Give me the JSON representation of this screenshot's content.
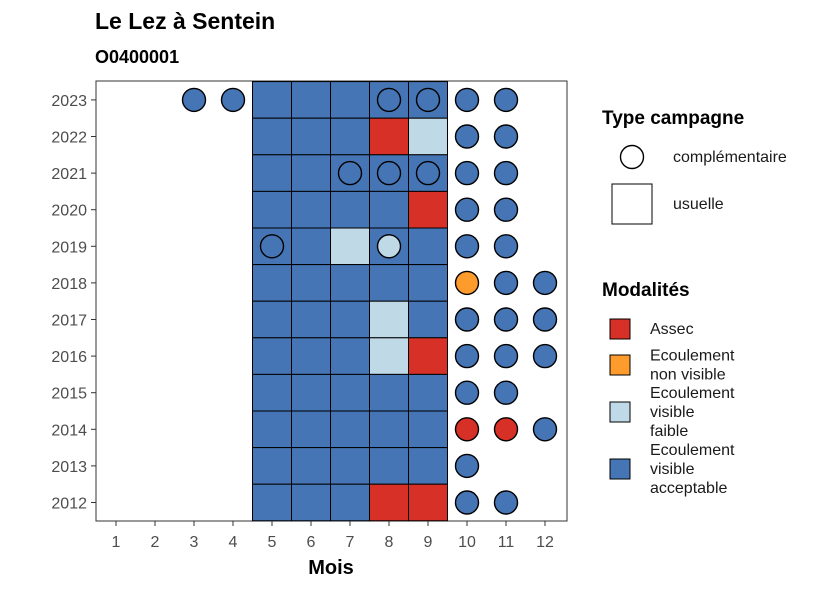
{
  "chart_data": {
    "type": "heatmap",
    "title": "Le Lez à Sentein",
    "subtitle": "O0400001",
    "xlabel": "Mois",
    "ylabel": "",
    "x_categories": [
      "1",
      "2",
      "3",
      "4",
      "5",
      "6",
      "7",
      "8",
      "9",
      "10",
      "11",
      "12"
    ],
    "y_categories": [
      "2012",
      "2013",
      "2014",
      "2015",
      "2016",
      "2017",
      "2018",
      "2019",
      "2020",
      "2021",
      "2022",
      "2023"
    ],
    "colors": {
      "Assec": "#d73027",
      "Ecoulement non visible": "#fd9c2d",
      "Ecoulement visible faible": "#c0d9e6",
      "Ecoulement visible acceptable": "#4575b4"
    },
    "legend_type": {
      "title": "Type campagne",
      "items": [
        {
          "label": "complémentaire",
          "shape": "circle"
        },
        {
          "label": "usuelle",
          "shape": "square"
        }
      ]
    },
    "legend_modalites": {
      "title": "Modalités",
      "items": [
        {
          "lines": [
            "Assec"
          ],
          "color": "#d73027"
        },
        {
          "lines": [
            "Ecoulement",
            "non visible"
          ],
          "color": "#fd9c2d"
        },
        {
          "lines": [
            "Ecoulement",
            "visible",
            "faible"
          ],
          "color": "#c0d9e6"
        },
        {
          "lines": [
            "Ecoulement",
            "visible",
            "acceptable"
          ],
          "color": "#4575b4"
        }
      ]
    },
    "observations": [
      {
        "year": "2023",
        "month": 3,
        "campaign": "complémentaire",
        "modalite": "Ecoulement visible acceptable"
      },
      {
        "year": "2023",
        "month": 4,
        "campaign": "complémentaire",
        "modalite": "Ecoulement visible acceptable"
      },
      {
        "year": "2023",
        "month": 5,
        "campaign": "usuelle",
        "modalite": "Ecoulement visible acceptable"
      },
      {
        "year": "2023",
        "month": 6,
        "campaign": "usuelle",
        "modalite": "Ecoulement visible acceptable"
      },
      {
        "year": "2023",
        "month": 7,
        "campaign": "usuelle",
        "modalite": "Ecoulement visible acceptable"
      },
      {
        "year": "2023",
        "month": 8,
        "campaign": "usuelle",
        "modalite": "Ecoulement visible acceptable"
      },
      {
        "year": "2023",
        "month": 8,
        "campaign": "complémentaire",
        "modalite": "Ecoulement visible acceptable"
      },
      {
        "year": "2023",
        "month": 9,
        "campaign": "usuelle",
        "modalite": "Ecoulement visible acceptable"
      },
      {
        "year": "2023",
        "month": 9,
        "campaign": "complémentaire",
        "modalite": "Ecoulement visible acceptable"
      },
      {
        "year": "2023",
        "month": 10,
        "campaign": "complémentaire",
        "modalite": "Ecoulement visible acceptable"
      },
      {
        "year": "2023",
        "month": 11,
        "campaign": "complémentaire",
        "modalite": "Ecoulement visible acceptable"
      },
      {
        "year": "2022",
        "month": 5,
        "campaign": "usuelle",
        "modalite": "Ecoulement visible acceptable"
      },
      {
        "year": "2022",
        "month": 6,
        "campaign": "usuelle",
        "modalite": "Ecoulement visible acceptable"
      },
      {
        "year": "2022",
        "month": 7,
        "campaign": "usuelle",
        "modalite": "Ecoulement visible acceptable"
      },
      {
        "year": "2022",
        "month": 8,
        "campaign": "usuelle",
        "modalite": "Assec"
      },
      {
        "year": "2022",
        "month": 9,
        "campaign": "usuelle",
        "modalite": "Ecoulement visible faible"
      },
      {
        "year": "2022",
        "month": 10,
        "campaign": "complémentaire",
        "modalite": "Ecoulement visible acceptable"
      },
      {
        "year": "2022",
        "month": 11,
        "campaign": "complémentaire",
        "modalite": "Ecoulement visible acceptable"
      },
      {
        "year": "2021",
        "month": 5,
        "campaign": "usuelle",
        "modalite": "Ecoulement visible acceptable"
      },
      {
        "year": "2021",
        "month": 6,
        "campaign": "usuelle",
        "modalite": "Ecoulement visible acceptable"
      },
      {
        "year": "2021",
        "month": 7,
        "campaign": "usuelle",
        "modalite": "Ecoulement visible acceptable"
      },
      {
        "year": "2021",
        "month": 7,
        "campaign": "complémentaire",
        "modalite": "Ecoulement visible acceptable"
      },
      {
        "year": "2021",
        "month": 8,
        "campaign": "usuelle",
        "modalite": "Ecoulement visible acceptable"
      },
      {
        "year": "2021",
        "month": 8,
        "campaign": "complémentaire",
        "modalite": "Ecoulement visible acceptable"
      },
      {
        "year": "2021",
        "month": 9,
        "campaign": "usuelle",
        "modalite": "Ecoulement visible acceptable"
      },
      {
        "year": "2021",
        "month": 9,
        "campaign": "complémentaire",
        "modalite": "Ecoulement visible acceptable"
      },
      {
        "year": "2021",
        "month": 10,
        "campaign": "complémentaire",
        "modalite": "Ecoulement visible acceptable"
      },
      {
        "year": "2021",
        "month": 11,
        "campaign": "complémentaire",
        "modalite": "Ecoulement visible acceptable"
      },
      {
        "year": "2020",
        "month": 5,
        "campaign": "usuelle",
        "modalite": "Ecoulement visible acceptable"
      },
      {
        "year": "2020",
        "month": 6,
        "campaign": "usuelle",
        "modalite": "Ecoulement visible acceptable"
      },
      {
        "year": "2020",
        "month": 7,
        "campaign": "usuelle",
        "modalite": "Ecoulement visible acceptable"
      },
      {
        "year": "2020",
        "month": 8,
        "campaign": "usuelle",
        "modalite": "Ecoulement visible acceptable"
      },
      {
        "year": "2020",
        "month": 9,
        "campaign": "usuelle",
        "modalite": "Assec"
      },
      {
        "year": "2020",
        "month": 10,
        "campaign": "complémentaire",
        "modalite": "Ecoulement visible acceptable"
      },
      {
        "year": "2020",
        "month": 11,
        "campaign": "complémentaire",
        "modalite": "Ecoulement visible acceptable"
      },
      {
        "year": "2019",
        "month": 5,
        "campaign": "usuelle",
        "modalite": "Ecoulement visible acceptable"
      },
      {
        "year": "2019",
        "month": 5,
        "campaign": "complémentaire",
        "modalite": "Ecoulement visible acceptable"
      },
      {
        "year": "2019",
        "month": 6,
        "campaign": "usuelle",
        "modalite": "Ecoulement visible acceptable"
      },
      {
        "year": "2019",
        "month": 7,
        "campaign": "usuelle",
        "modalite": "Ecoulement visible faible"
      },
      {
        "year": "2019",
        "month": 8,
        "campaign": "usuelle",
        "modalite": "Ecoulement visible acceptable"
      },
      {
        "year": "2019",
        "month": 8,
        "campaign": "complémentaire",
        "modalite": "Ecoulement visible faible"
      },
      {
        "year": "2019",
        "month": 9,
        "campaign": "usuelle",
        "modalite": "Ecoulement visible acceptable"
      },
      {
        "year": "2019",
        "month": 10,
        "campaign": "complémentaire",
        "modalite": "Ecoulement visible acceptable"
      },
      {
        "year": "2019",
        "month": 11,
        "campaign": "complémentaire",
        "modalite": "Ecoulement visible acceptable"
      },
      {
        "year": "2018",
        "month": 5,
        "campaign": "usuelle",
        "modalite": "Ecoulement visible acceptable"
      },
      {
        "year": "2018",
        "month": 6,
        "campaign": "usuelle",
        "modalite": "Ecoulement visible acceptable"
      },
      {
        "year": "2018",
        "month": 7,
        "campaign": "usuelle",
        "modalite": "Ecoulement visible acceptable"
      },
      {
        "year": "2018",
        "month": 8,
        "campaign": "usuelle",
        "modalite": "Ecoulement visible acceptable"
      },
      {
        "year": "2018",
        "month": 9,
        "campaign": "usuelle",
        "modalite": "Ecoulement visible acceptable"
      },
      {
        "year": "2018",
        "month": 10,
        "campaign": "complémentaire",
        "modalite": "Ecoulement non visible"
      },
      {
        "year": "2018",
        "month": 11,
        "campaign": "complémentaire",
        "modalite": "Ecoulement visible acceptable"
      },
      {
        "year": "2018",
        "month": 12,
        "campaign": "complémentaire",
        "modalite": "Ecoulement visible acceptable"
      },
      {
        "year": "2017",
        "month": 5,
        "campaign": "usuelle",
        "modalite": "Ecoulement visible acceptable"
      },
      {
        "year": "2017",
        "month": 6,
        "campaign": "usuelle",
        "modalite": "Ecoulement visible acceptable"
      },
      {
        "year": "2017",
        "month": 7,
        "campaign": "usuelle",
        "modalite": "Ecoulement visible acceptable"
      },
      {
        "year": "2017",
        "month": 8,
        "campaign": "usuelle",
        "modalite": "Ecoulement visible faible"
      },
      {
        "year": "2017",
        "month": 9,
        "campaign": "usuelle",
        "modalite": "Ecoulement visible acceptable"
      },
      {
        "year": "2017",
        "month": 10,
        "campaign": "complémentaire",
        "modalite": "Ecoulement visible acceptable"
      },
      {
        "year": "2017",
        "month": 11,
        "campaign": "complémentaire",
        "modalite": "Ecoulement visible acceptable"
      },
      {
        "year": "2017",
        "month": 12,
        "campaign": "complémentaire",
        "modalite": "Ecoulement visible acceptable"
      },
      {
        "year": "2016",
        "month": 5,
        "campaign": "usuelle",
        "modalite": "Ecoulement visible acceptable"
      },
      {
        "year": "2016",
        "month": 6,
        "campaign": "usuelle",
        "modalite": "Ecoulement visible acceptable"
      },
      {
        "year": "2016",
        "month": 7,
        "campaign": "usuelle",
        "modalite": "Ecoulement visible acceptable"
      },
      {
        "year": "2016",
        "month": 8,
        "campaign": "usuelle",
        "modalite": "Ecoulement visible faible"
      },
      {
        "year": "2016",
        "month": 9,
        "campaign": "usuelle",
        "modalite": "Assec"
      },
      {
        "year": "2016",
        "month": 10,
        "campaign": "complémentaire",
        "modalite": "Ecoulement visible acceptable"
      },
      {
        "year": "2016",
        "month": 11,
        "campaign": "complémentaire",
        "modalite": "Ecoulement visible acceptable"
      },
      {
        "year": "2016",
        "month": 12,
        "campaign": "complémentaire",
        "modalite": "Ecoulement visible acceptable"
      },
      {
        "year": "2015",
        "month": 5,
        "campaign": "usuelle",
        "modalite": "Ecoulement visible acceptable"
      },
      {
        "year": "2015",
        "month": 6,
        "campaign": "usuelle",
        "modalite": "Ecoulement visible acceptable"
      },
      {
        "year": "2015",
        "month": 7,
        "campaign": "usuelle",
        "modalite": "Ecoulement visible acceptable"
      },
      {
        "year": "2015",
        "month": 8,
        "campaign": "usuelle",
        "modalite": "Ecoulement visible acceptable"
      },
      {
        "year": "2015",
        "month": 9,
        "campaign": "usuelle",
        "modalite": "Ecoulement visible acceptable"
      },
      {
        "year": "2015",
        "month": 10,
        "campaign": "complémentaire",
        "modalite": "Ecoulement visible acceptable"
      },
      {
        "year": "2015",
        "month": 11,
        "campaign": "complémentaire",
        "modalite": "Ecoulement visible acceptable"
      },
      {
        "year": "2014",
        "month": 5,
        "campaign": "usuelle",
        "modalite": "Ecoulement visible acceptable"
      },
      {
        "year": "2014",
        "month": 6,
        "campaign": "usuelle",
        "modalite": "Ecoulement visible acceptable"
      },
      {
        "year": "2014",
        "month": 7,
        "campaign": "usuelle",
        "modalite": "Ecoulement visible acceptable"
      },
      {
        "year": "2014",
        "month": 8,
        "campaign": "usuelle",
        "modalite": "Ecoulement visible acceptable"
      },
      {
        "year": "2014",
        "month": 9,
        "campaign": "usuelle",
        "modalite": "Ecoulement visible acceptable"
      },
      {
        "year": "2014",
        "month": 10,
        "campaign": "complémentaire",
        "modalite": "Assec"
      },
      {
        "year": "2014",
        "month": 11,
        "campaign": "complémentaire",
        "modalite": "Assec"
      },
      {
        "year": "2014",
        "month": 12,
        "campaign": "complémentaire",
        "modalite": "Ecoulement visible acceptable"
      },
      {
        "year": "2013",
        "month": 5,
        "campaign": "usuelle",
        "modalite": "Ecoulement visible acceptable"
      },
      {
        "year": "2013",
        "month": 6,
        "campaign": "usuelle",
        "modalite": "Ecoulement visible acceptable"
      },
      {
        "year": "2013",
        "month": 7,
        "campaign": "usuelle",
        "modalite": "Ecoulement visible acceptable"
      },
      {
        "year": "2013",
        "month": 8,
        "campaign": "usuelle",
        "modalite": "Ecoulement visible acceptable"
      },
      {
        "year": "2013",
        "month": 9,
        "campaign": "usuelle",
        "modalite": "Ecoulement visible acceptable"
      },
      {
        "year": "2013",
        "month": 10,
        "campaign": "complémentaire",
        "modalite": "Ecoulement visible acceptable"
      },
      {
        "year": "2012",
        "month": 5,
        "campaign": "usuelle",
        "modalite": "Ecoulement visible acceptable"
      },
      {
        "year": "2012",
        "month": 6,
        "campaign": "usuelle",
        "modalite": "Ecoulement visible acceptable"
      },
      {
        "year": "2012",
        "month": 7,
        "campaign": "usuelle",
        "modalite": "Ecoulement visible acceptable"
      },
      {
        "year": "2012",
        "month": 8,
        "campaign": "usuelle",
        "modalite": "Assec"
      },
      {
        "year": "2012",
        "month": 9,
        "campaign": "usuelle",
        "modalite": "Assec"
      },
      {
        "year": "2012",
        "month": 10,
        "campaign": "complémentaire",
        "modalite": "Ecoulement visible acceptable"
      },
      {
        "year": "2012",
        "month": 11,
        "campaign": "complémentaire",
        "modalite": "Ecoulement visible acceptable"
      }
    ]
  }
}
